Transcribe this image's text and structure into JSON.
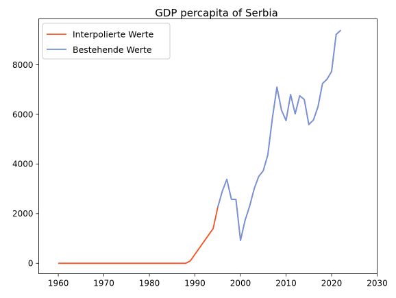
{
  "chart_data": {
    "type": "line",
    "title": "GDP percapita of Serbia",
    "xlabel": "",
    "ylabel": "",
    "xlim": [
      1955.7,
      2030
    ],
    "ylim": [
      -420,
      9850
    ],
    "xticks": [
      1960,
      1970,
      1980,
      1990,
      2000,
      2010,
      2020,
      2030
    ],
    "yticks": [
      0,
      2000,
      4000,
      6000,
      8000
    ],
    "grid": false,
    "legend_position": "top-left",
    "series": [
      {
        "name": "Interpolierte Werte",
        "color": "#f4511e",
        "x": [
          1960,
          1988,
          1989,
          1994,
          1995,
          1996,
          1997,
          1998,
          1999,
          2000,
          2001,
          2002,
          2003,
          2004,
          2005,
          2006,
          2007,
          2008,
          2009,
          2010,
          2011,
          2012,
          2013,
          2014,
          2015,
          2016,
          2017,
          2018,
          2019,
          2020,
          2021,
          2022
        ],
        "y": [
          0,
          0,
          100,
          1400,
          2250,
          2900,
          3380,
          2580,
          2570,
          920,
          1730,
          2300,
          3000,
          3500,
          3730,
          4370,
          5850,
          7100,
          6170,
          5750,
          6800,
          6020,
          6750,
          6600,
          5590,
          5770,
          6300,
          7240,
          7420,
          7730,
          9220,
          9390
        ]
      },
      {
        "name": "Bestehende Werte",
        "color": "#6e93e0",
        "x": [
          1995,
          1996,
          1997,
          1998,
          1999,
          2000,
          2001,
          2002,
          2003,
          2004,
          2005,
          2006,
          2007,
          2008,
          2009,
          2010,
          2011,
          2012,
          2013,
          2014,
          2015,
          2016,
          2017,
          2018,
          2019,
          2020,
          2021,
          2022
        ],
        "y": [
          2250,
          2900,
          3380,
          2580,
          2570,
          920,
          1730,
          2300,
          3000,
          3500,
          3730,
          4370,
          5850,
          7100,
          6170,
          5750,
          6800,
          6020,
          6750,
          6600,
          5590,
          5770,
          6300,
          7240,
          7420,
          7730,
          9220,
          9390
        ]
      }
    ]
  }
}
